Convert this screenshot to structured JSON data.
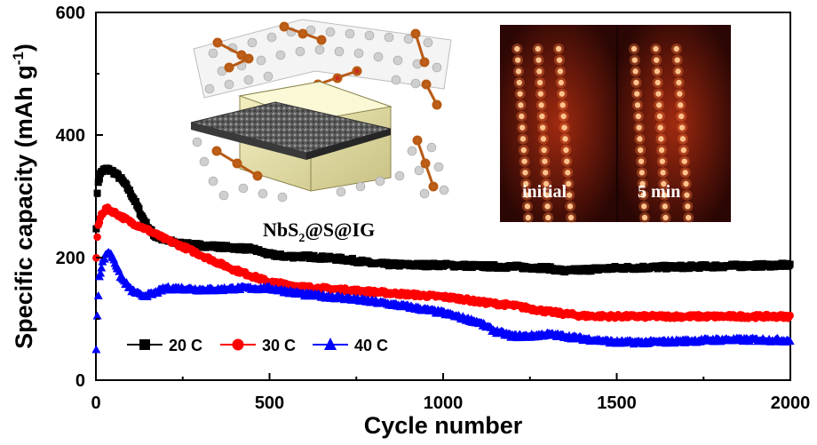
{
  "chart_data": {
    "type": "scatter",
    "xlabel": "Cycle number",
    "ylabel": "Specific capacity (mAh g-1)",
    "ylabel_parts": {
      "main": "Specific capacity (mAh g",
      "sup": "-1",
      "end": ")"
    },
    "xlim": [
      0,
      2000
    ],
    "ylim": [
      0,
      600
    ],
    "x_ticks": [
      "0",
      "500",
      "1000",
      "1500",
      "2000"
    ],
    "y_ticks": [
      "0",
      "200",
      "400",
      "600"
    ],
    "legend_position": "bottom-left",
    "grid": false,
    "series": [
      {
        "name": "20 C",
        "color": "#000000",
        "marker": "square",
        "points": [
          [
            1,
            250
          ],
          [
            5,
            320
          ],
          [
            15,
            340
          ],
          [
            30,
            345
          ],
          [
            50,
            340
          ],
          [
            70,
            330
          ],
          [
            90,
            315
          ],
          [
            110,
            295
          ],
          [
            130,
            270
          ],
          [
            150,
            250
          ],
          [
            170,
            235
          ],
          [
            200,
            228
          ],
          [
            250,
            222
          ],
          [
            300,
            220
          ],
          [
            350,
            218
          ],
          [
            400,
            216
          ],
          [
            450,
            214
          ],
          [
            500,
            205
          ],
          [
            550,
            202
          ],
          [
            600,
            202
          ],
          [
            700,
            198
          ],
          [
            750,
            195
          ],
          [
            800,
            190
          ],
          [
            900,
            188
          ],
          [
            1000,
            188
          ],
          [
            1100,
            186
          ],
          [
            1200,
            185
          ],
          [
            1300,
            183
          ],
          [
            1350,
            178
          ],
          [
            1400,
            180
          ],
          [
            1500,
            183
          ],
          [
            1600,
            184
          ],
          [
            1700,
            185
          ],
          [
            1800,
            186
          ],
          [
            1900,
            187
          ],
          [
            2000,
            188
          ]
        ]
      },
      {
        "name": "30 C",
        "color": "#ff0000",
        "marker": "circle",
        "points": [
          [
            1,
            200
          ],
          [
            5,
            245
          ],
          [
            15,
            270
          ],
          [
            30,
            280
          ],
          [
            50,
            275
          ],
          [
            70,
            268
          ],
          [
            100,
            258
          ],
          [
            150,
            245
          ],
          [
            200,
            230
          ],
          [
            250,
            218
          ],
          [
            300,
            205
          ],
          [
            350,
            192
          ],
          [
            400,
            180
          ],
          [
            450,
            170
          ],
          [
            500,
            160
          ],
          [
            600,
            152
          ],
          [
            700,
            148
          ],
          [
            800,
            144
          ],
          [
            900,
            140
          ],
          [
            1000,
            136
          ],
          [
            1050,
            133
          ],
          [
            1100,
            128
          ],
          [
            1200,
            122
          ],
          [
            1300,
            112
          ],
          [
            1400,
            105
          ],
          [
            1500,
            104
          ],
          [
            1600,
            104
          ],
          [
            1700,
            104
          ],
          [
            1800,
            104
          ],
          [
            1900,
            104
          ],
          [
            2000,
            104
          ]
        ]
      },
      {
        "name": "40 C",
        "color": "#0000ff",
        "marker": "triangle",
        "points": [
          [
            1,
            50
          ],
          [
            5,
            120
          ],
          [
            10,
            170
          ],
          [
            20,
            195
          ],
          [
            35,
            210
          ],
          [
            50,
            200
          ],
          [
            70,
            170
          ],
          [
            100,
            148
          ],
          [
            130,
            138
          ],
          [
            160,
            140
          ],
          [
            200,
            150
          ],
          [
            250,
            150
          ],
          [
            300,
            148
          ],
          [
            350,
            148
          ],
          [
            400,
            150
          ],
          [
            450,
            150
          ],
          [
            500,
            150
          ],
          [
            550,
            145
          ],
          [
            600,
            140
          ],
          [
            700,
            135
          ],
          [
            800,
            128
          ],
          [
            900,
            120
          ],
          [
            1000,
            110
          ],
          [
            1100,
            95
          ],
          [
            1150,
            80
          ],
          [
            1200,
            72
          ],
          [
            1250,
            72
          ],
          [
            1300,
            75
          ],
          [
            1350,
            72
          ],
          [
            1400,
            68
          ],
          [
            1500,
            62
          ],
          [
            1600,
            62
          ],
          [
            1700,
            64
          ],
          [
            1800,
            66
          ],
          [
            1900,
            66
          ],
          [
            2000,
            65
          ]
        ]
      }
    ],
    "annotations": {
      "inset_caption": {
        "main": "NbS",
        "sub": "2",
        "rest": "@S@IG"
      },
      "photo_labels": [
        "initial",
        "5 min"
      ]
    }
  }
}
